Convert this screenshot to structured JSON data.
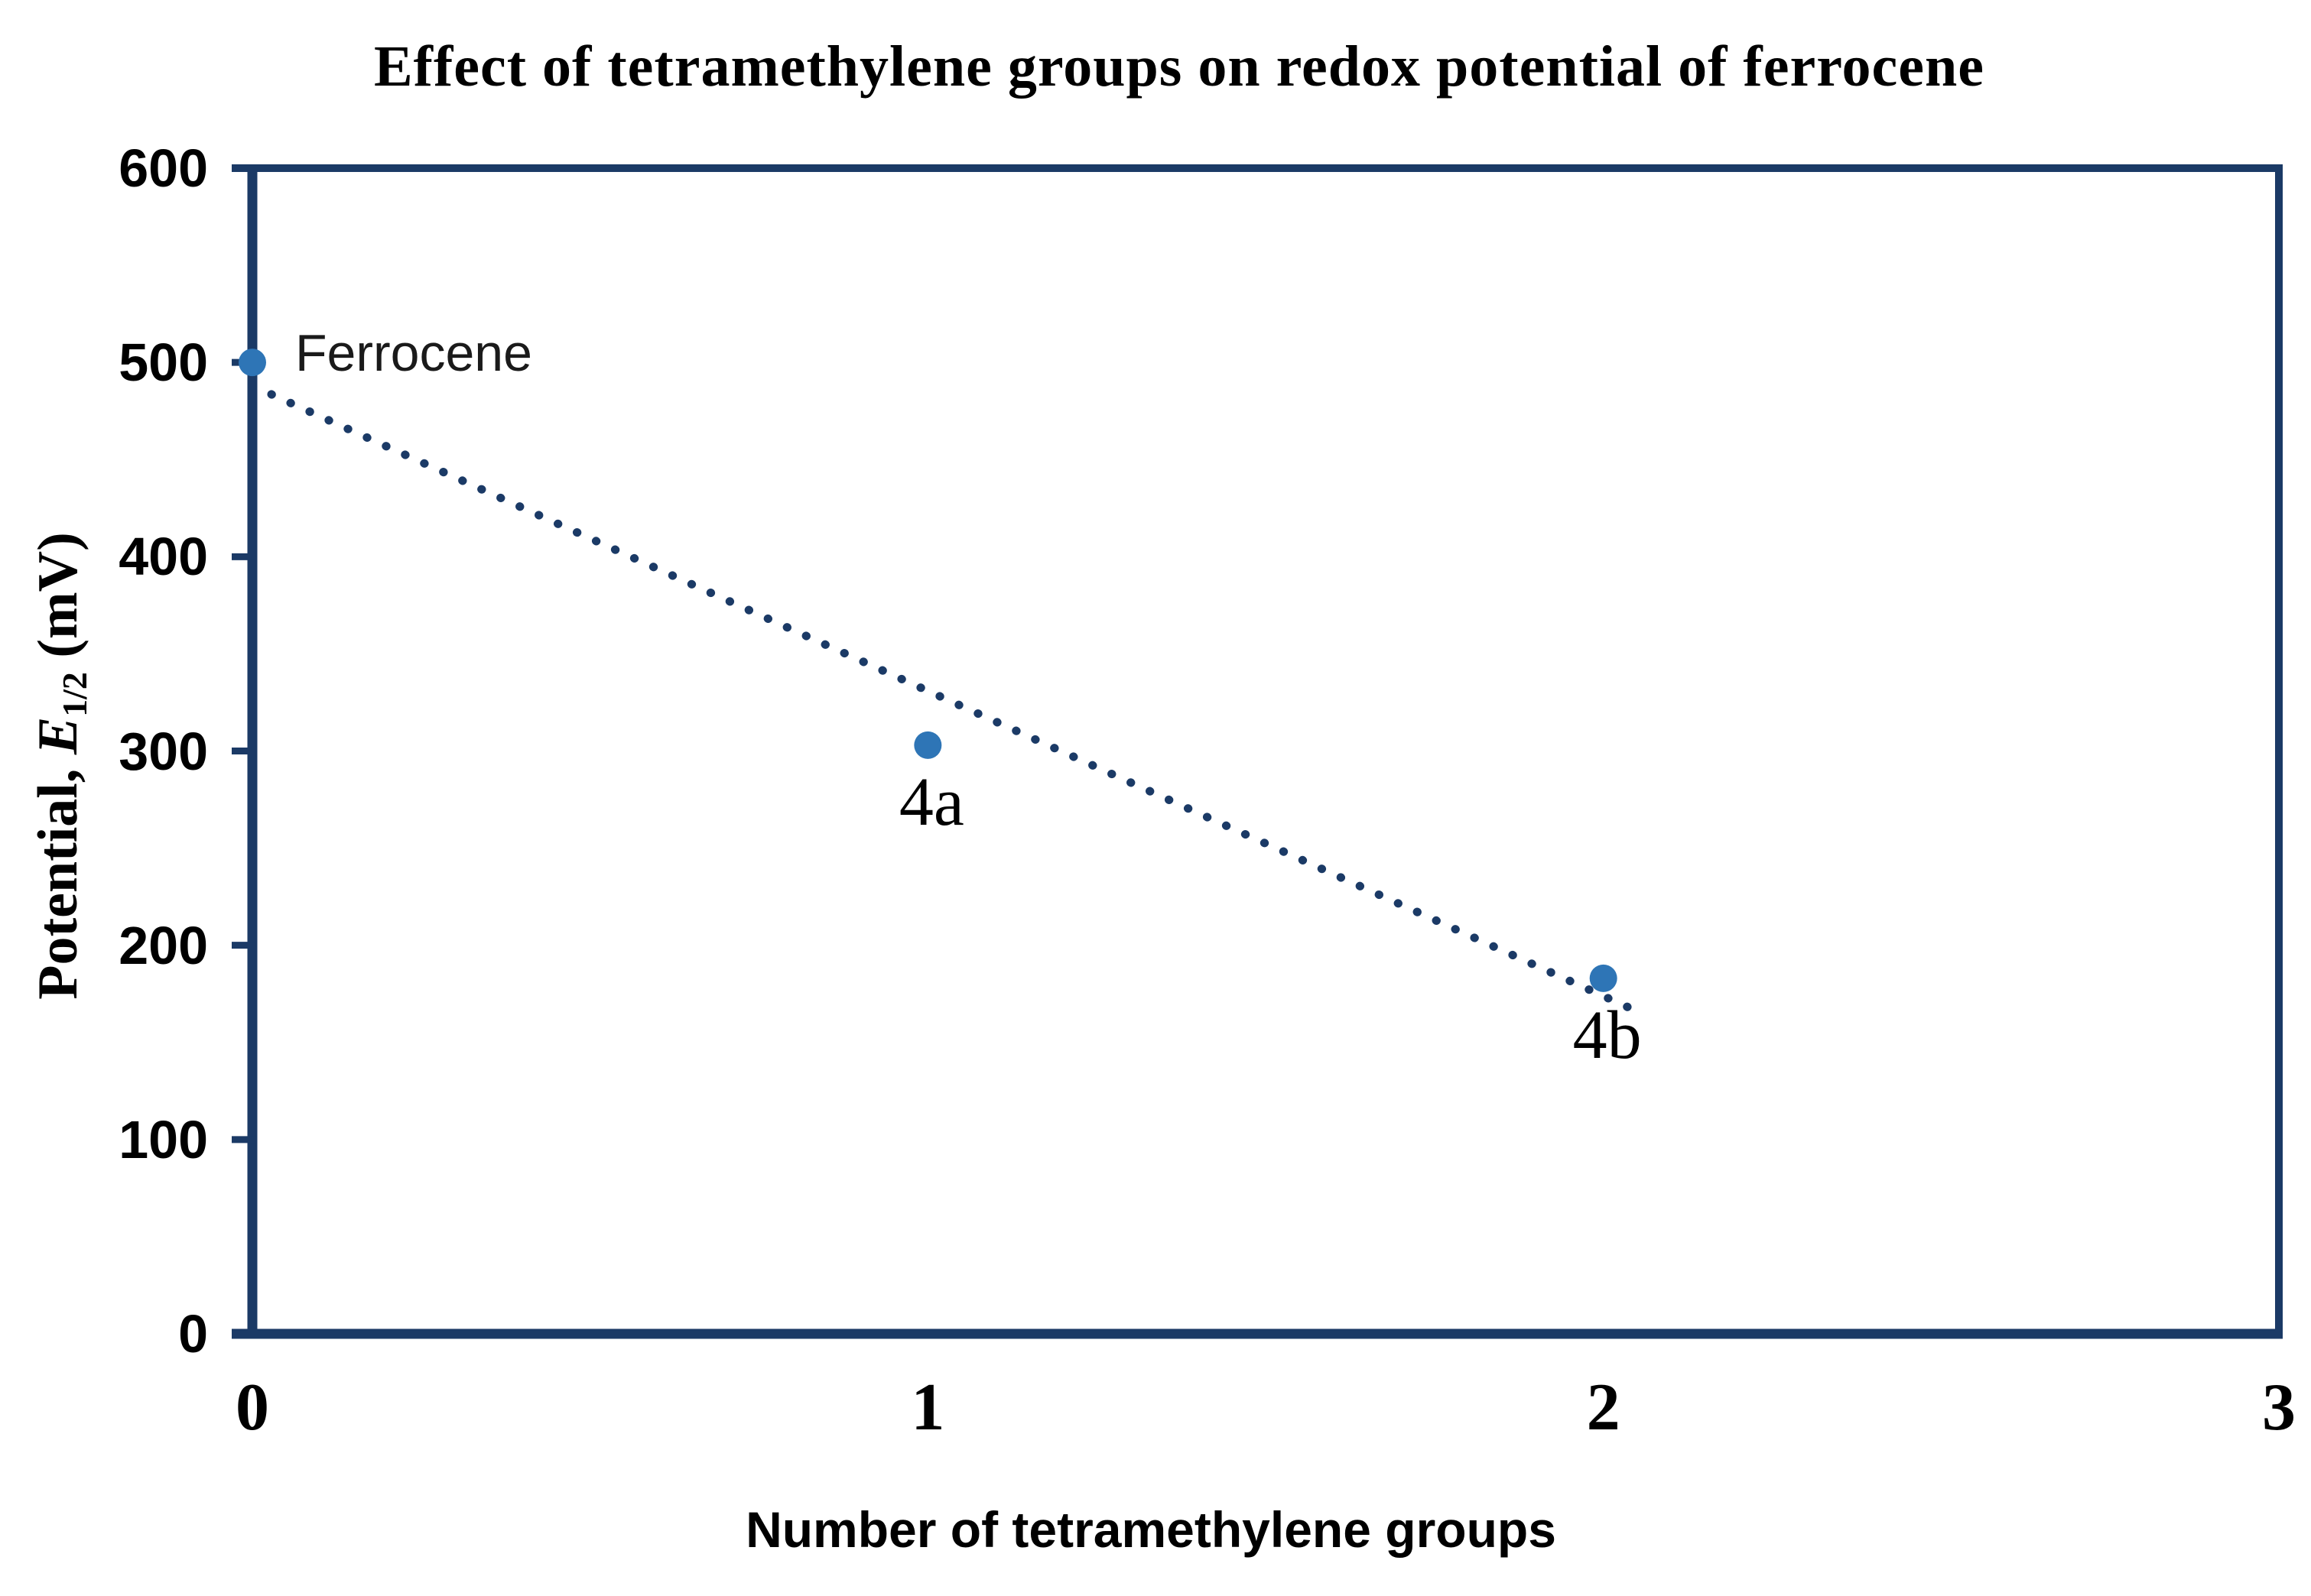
{
  "page": {
    "background": "#FFFFFF"
  },
  "chart_data": {
    "type": "scatter",
    "title": "Effect of tetramethylene groups on redox potential of ferrocene",
    "xlabel": "Number of tetramethylene groups",
    "ylabel": {
      "prefix": "Potential, ",
      "symbol": "E",
      "subscript": "1/2",
      "suffix": " (mV)"
    },
    "xlim": [
      0,
      3
    ],
    "ylim": [
      0,
      600
    ],
    "x_ticks": [
      "0",
      "1",
      "2",
      "3"
    ],
    "y_ticks": [
      "0",
      "100",
      "200",
      "300",
      "400",
      "500",
      "600"
    ],
    "grid": false,
    "legend": "none",
    "points": [
      {
        "x": 0,
        "y": 500,
        "label": "Ferrocene",
        "label_position": "right",
        "label_style": "sans"
      },
      {
        "x": 1,
        "y": 303,
        "label": "4a",
        "label_position": "below",
        "label_style": "serif"
      },
      {
        "x": 2,
        "y": 183,
        "label": "4b",
        "label_position": "below",
        "label_style": "serif"
      }
    ],
    "trendline": {
      "style": "dotted",
      "from": {
        "x": 0,
        "y": 488
      },
      "to": {
        "x": 2.05,
        "y": 166
      }
    },
    "colors": {
      "marker": "#2E75B6",
      "trendline": "#1B3A66",
      "axis": "#1B3A66",
      "text": "#000000"
    }
  }
}
